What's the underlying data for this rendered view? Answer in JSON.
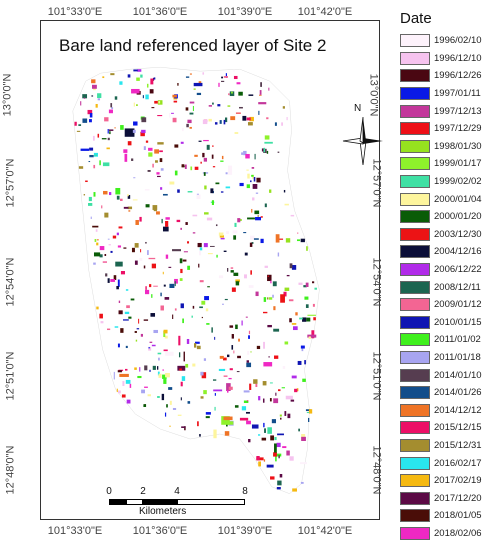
{
  "map": {
    "title": "Bare land referenced layer of Site 2",
    "top_ticks": [
      "101°33'0\"E",
      "101°36'0\"E",
      "101°39'0\"E",
      "101°42'0\"E"
    ],
    "bottom_ticks": [
      "101°33'0\"E",
      "101°36'0\"E",
      "101°39'0\"E",
      "101°42'0\"E"
    ],
    "left_ticks": [
      "13°0'0\"N",
      "12°57'0\"N",
      "12°54'0\"N",
      "12°51'0\"N",
      "12°48'0\"N"
    ],
    "right_ticks": [
      "13°0'0\"N",
      "12°57'0\"N",
      "12°54'0\"N",
      "12°51'0\"N",
      "12°48'0\"N"
    ],
    "north_label": "N",
    "scale": {
      "ticks": [
        "0",
        "2",
        "4",
        "8"
      ],
      "unit": "Kilometers"
    }
  },
  "legend": {
    "title": "Date",
    "items": [
      {
        "label": "1996/02/10",
        "color": "#fdf2fb"
      },
      {
        "label": "1996/12/10",
        "color": "#f6c3ef"
      },
      {
        "label": "1996/12/26",
        "color": "#4a0712"
      },
      {
        "label": "1997/01/11",
        "color": "#0a19e6"
      },
      {
        "label": "1997/12/13",
        "color": "#c3379b"
      },
      {
        "label": "1997/12/29",
        "color": "#ee1017"
      },
      {
        "label": "1998/01/30",
        "color": "#96e21f"
      },
      {
        "label": "1999/01/17",
        "color": "#8ef22b"
      },
      {
        "label": "1999/02/02",
        "color": "#3fe0a4"
      },
      {
        "label": "2000/01/04",
        "color": "#fdf59d"
      },
      {
        "label": "2000/01/20",
        "color": "#0a5c07"
      },
      {
        "label": "2003/12/30",
        "color": "#ec1315"
      },
      {
        "label": "2004/12/16",
        "color": "#0b0e38"
      },
      {
        "label": "2006/12/22",
        "color": "#b12be9"
      },
      {
        "label": "2008/12/11",
        "color": "#1c6550"
      },
      {
        "label": "2009/01/12",
        "color": "#f36593"
      },
      {
        "label": "2010/01/15",
        "color": "#0f15b3"
      },
      {
        "label": "2011/01/02",
        "color": "#3ff01d"
      },
      {
        "label": "2011/01/18",
        "color": "#a8a5f1"
      },
      {
        "label": "2014/01/10",
        "color": "#563d50"
      },
      {
        "label": "2014/01/26",
        "color": "#124d8b"
      },
      {
        "label": "2014/12/12",
        "color": "#ef7426"
      },
      {
        "label": "2015/12/15",
        "color": "#ec0f66"
      },
      {
        "label": "2015/12/31",
        "color": "#a48d2f"
      },
      {
        "label": "2016/02/17",
        "color": "#29e6ee"
      },
      {
        "label": "2017/02/19",
        "color": "#f5b911"
      },
      {
        "label": "2017/12/20",
        "color": "#5b0a45"
      },
      {
        "label": "2018/01/05",
        "color": "#4a0d08"
      },
      {
        "label": "2018/02/06",
        "color": "#ef28c3"
      }
    ]
  }
}
